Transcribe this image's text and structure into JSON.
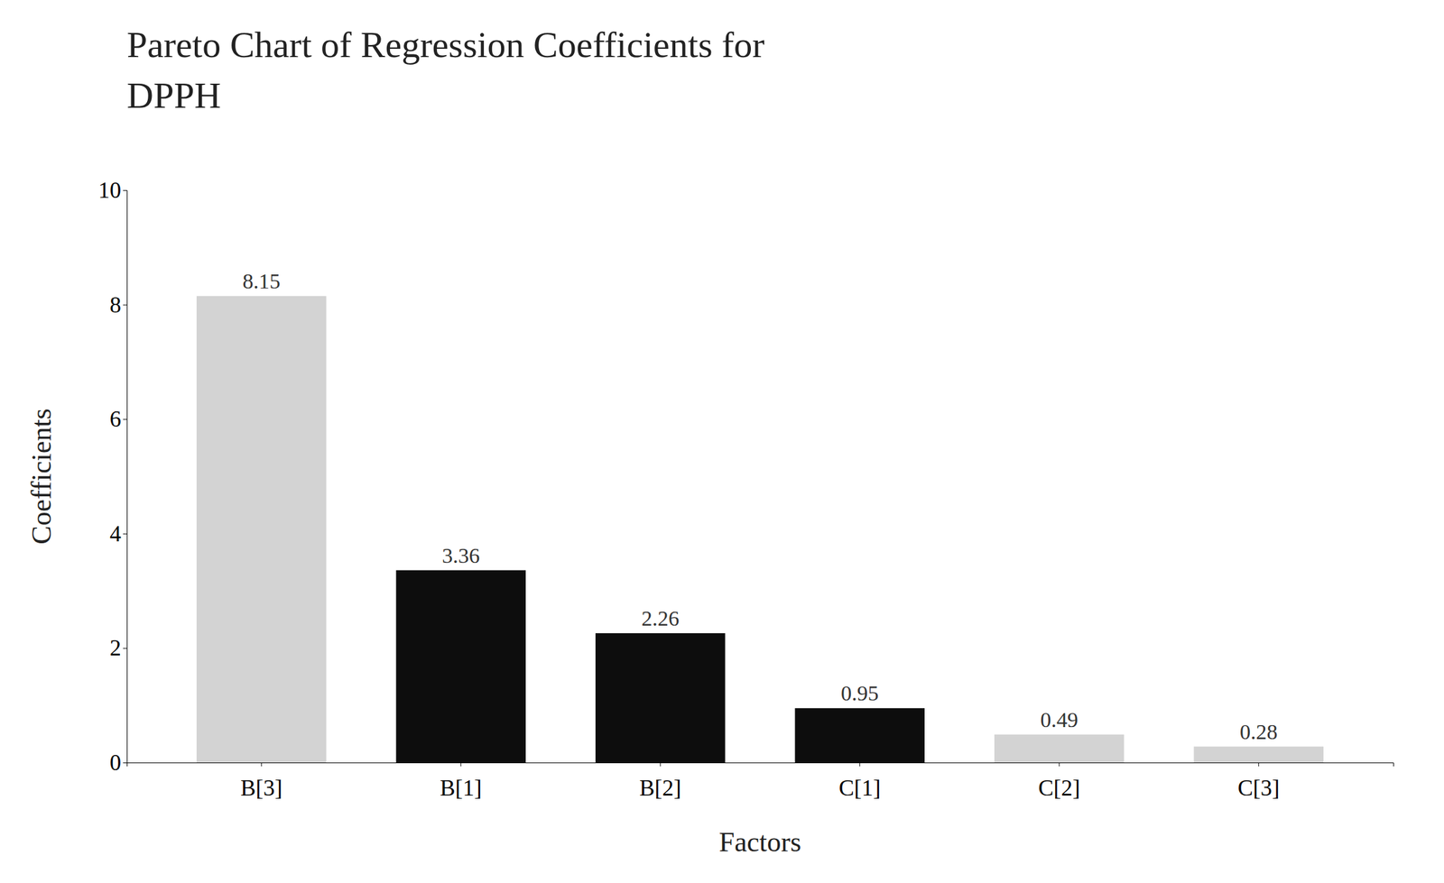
{
  "chart_data": {
    "type": "bar",
    "title": "Pareto Chart of Regression Coefficients for",
    "subtitle": "DPPH",
    "xlabel": "Factors",
    "ylabel": "Coefficients",
    "categories": [
      "B[3]",
      "B[1]",
      "B[2]",
      "C[1]",
      "C[2]",
      "C[3]"
    ],
    "values": [
      8.15,
      3.36,
      2.26,
      0.95,
      0.49,
      0.28
    ],
    "colors": [
      "#d3d3d3",
      "#0d0d0d",
      "#0d0d0d",
      "#0d0d0d",
      "#d3d3d3",
      "#d3d3d3"
    ],
    "ylim": [
      0,
      10
    ],
    "yticks": [
      0,
      2,
      4,
      6,
      8,
      10
    ],
    "grid": false,
    "data_labels": true
  }
}
